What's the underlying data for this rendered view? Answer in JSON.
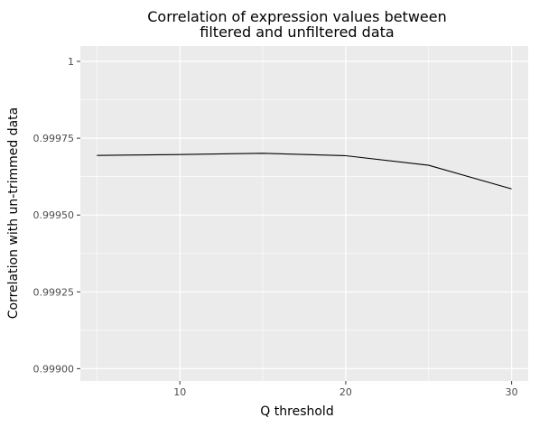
{
  "chart_data": {
    "type": "line",
    "title_lines": [
      "Correlation of expression values between",
      "filtered and unfiltered data"
    ],
    "xlabel": "Q threshold",
    "ylabel": "Correlation with un-trimmed data",
    "x": [
      5,
      10,
      15,
      20,
      25,
      30
    ],
    "series": [
      {
        "values": [
          0.999694,
          0.999697,
          0.999701,
          0.999693,
          0.999662,
          0.999585
        ]
      }
    ],
    "xlim": [
      4,
      31
    ],
    "ylim": [
      0.99896,
      1.00005
    ],
    "x_ticks": [
      10,
      20,
      30
    ],
    "x_tick_labels": [
      "10",
      "20",
      "30"
    ],
    "y_ticks": [
      0.999,
      0.99925,
      0.9995,
      0.99975,
      1.0
    ],
    "y_tick_labels": [
      "0.99900",
      "0.99925",
      "0.99950",
      "0.99975",
      "1"
    ],
    "grid": true,
    "panel_color": "#ebebeb",
    "grid_color": "#ffffff",
    "line_color": "#000000"
  }
}
